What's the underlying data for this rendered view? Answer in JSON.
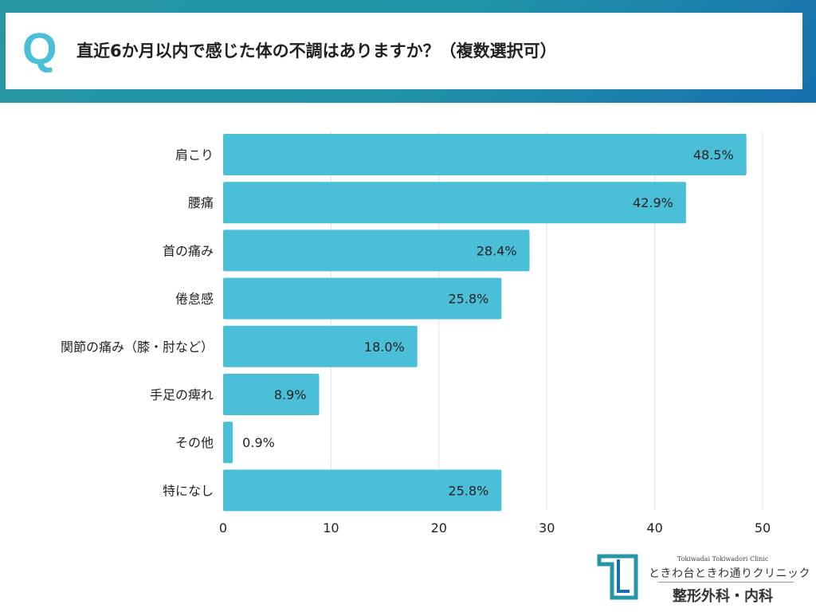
{
  "header": {
    "q_mark": "Q",
    "title": "直近6か月以内で感じた体の不調はありますか？（複数選択可）"
  },
  "colors": {
    "bar": "#4bbfd8",
    "grid": "#e3e3e3",
    "header_start": "#2596a3",
    "header_end": "#176fae"
  },
  "chart_data": {
    "type": "bar",
    "orientation": "horizontal",
    "categories": [
      "肩こり",
      "腰痛",
      "首の痛み",
      "倦怠感",
      "関節の痛み（膝・肘など）",
      "手足の痺れ",
      "その他",
      "特になし"
    ],
    "values": [
      48.5,
      42.9,
      28.4,
      25.8,
      18.0,
      8.9,
      0.9,
      25.8
    ],
    "data_labels": [
      "48.5%",
      "42.9%",
      "28.4%",
      "25.8%",
      "18.0%",
      "8.9%",
      "0.9%",
      "25.8%"
    ],
    "xlim": [
      0,
      50
    ],
    "xticks": [
      0,
      10,
      20,
      30,
      40,
      50
    ],
    "grid": true,
    "title": "",
    "xlabel": "",
    "ylabel": ""
  },
  "logo": {
    "en": "Tokiwadai Tokiwadori Clinic",
    "ja": "ときわ台ときわ通りクリニック",
    "dept": "整形外科・内科"
  }
}
